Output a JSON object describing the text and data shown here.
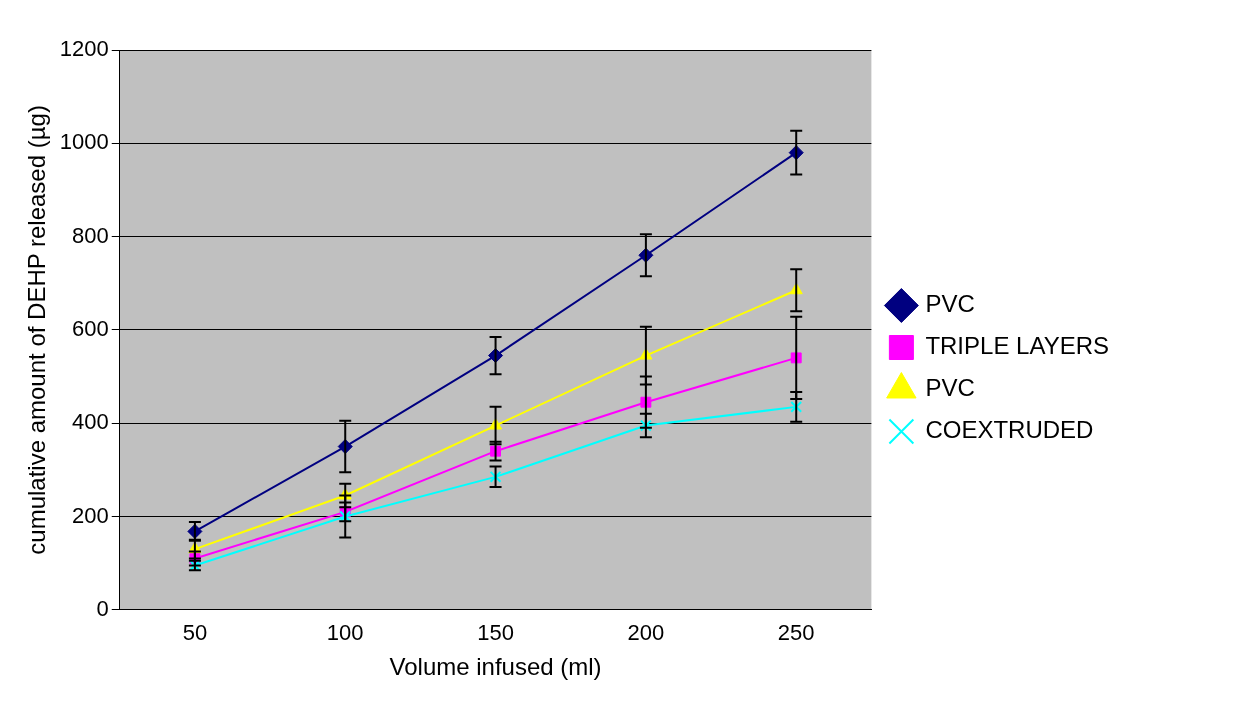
{
  "chart_data": {
    "type": "line",
    "xlabel": "Volume infused (ml)",
    "ylabel": "cumulative amount of DEHP released (µg)",
    "categories": [
      "50",
      "100",
      "150",
      "200",
      "250"
    ],
    "ylim": [
      0,
      1200
    ],
    "yticks": [
      0,
      200,
      400,
      600,
      800,
      1000,
      1200
    ],
    "grid": "y",
    "legend": "right",
    "line_style": "solid",
    "series": [
      {
        "name": "PVC",
        "color": "#000080",
        "marker": "diamond",
        "values": [
          168,
          350,
          545,
          760,
          980
        ],
        "errors": [
          20,
          55,
          40,
          45,
          47
        ]
      },
      {
        "name": "TRIPLE LAYERS",
        "color": "#ff00ff",
        "marker": "square",
        "values": [
          110,
          210,
          340,
          445,
          540
        ],
        "errors": [
          15,
          20,
          20,
          55,
          88
        ]
      },
      {
        "name": "PVC",
        "color": "#ffff00",
        "marker": "triangle",
        "values": [
          130,
          245,
          395,
          545,
          685
        ],
        "errors": [
          20,
          25,
          40,
          62,
          45
        ]
      },
      {
        "name": "COEXTRUDED",
        "color": "#00ffff",
        "marker": "cross",
        "values": [
          95,
          200,
          285,
          395,
          435
        ],
        "errors": [
          10,
          45,
          22,
          25,
          32
        ]
      }
    ]
  }
}
